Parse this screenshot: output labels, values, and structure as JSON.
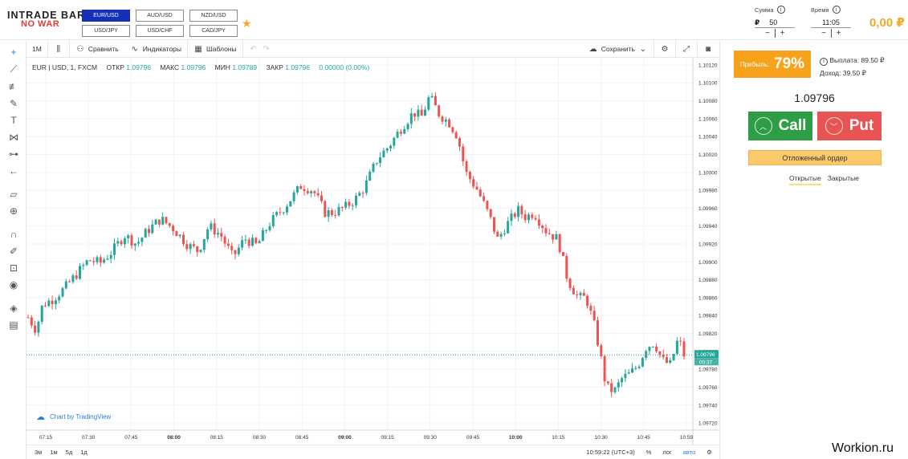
{
  "logo": {
    "line1": "INTRADE BAR",
    "line2": "NO WAR"
  },
  "pairs": [
    {
      "label": "EUR/USD",
      "active": true
    },
    {
      "label": "AUD/USD",
      "active": false
    },
    {
      "label": "NZD/USD",
      "active": false
    },
    {
      "label": "USD/JPY",
      "active": false
    },
    {
      "label": "USD/CHF",
      "active": false
    },
    {
      "label": "CAD/JPY",
      "active": false
    }
  ],
  "amount": {
    "label": "Сумма",
    "currency": "₽",
    "value": "50",
    "minus": "−",
    "plus": "+"
  },
  "time": {
    "label": "Время",
    "value": "11:05",
    "minus": "−",
    "plus": "+"
  },
  "balance": "0,00 ₽",
  "toolbar": {
    "interval": "1M",
    "compare": "Сравнить",
    "indicators": "Индикаторы",
    "templates": "Шаблоны",
    "save": "Сохранить"
  },
  "legend": {
    "symbol": "EUR | USD, 1, FXCM",
    "open_label": "ОТКР",
    "open": "1.09796",
    "high_label": "МАКС",
    "high": "1.09796",
    "low_label": "МИН",
    "low": "1.09789",
    "close_label": "ЗАКР",
    "close": "1.09796",
    "change": "0.00000 (0.00%)"
  },
  "tv_link": "Chart by TradingView",
  "bottombar": {
    "ranges": [
      "3м",
      "1м",
      "5д",
      "1д"
    ],
    "clock": "10:59:22 (UTC+3)",
    "percent": "%",
    "log": "лог",
    "auto": "авто"
  },
  "panel": {
    "profit_label": "Прибыль:",
    "profit_pct": "79%",
    "payout": "Выплата: 89.50 ₽",
    "income": "Доход: 39.50 ₽",
    "price": "1.09796",
    "call": "Call",
    "put": "Put",
    "pending": "Отложенный ордер",
    "tab_open": "Открытые",
    "tab_closed": "Закрытые"
  },
  "watermark": "Workion.ru",
  "colors": {
    "up": "#26a69a",
    "down": "#ef5350",
    "accent": "#f5a623",
    "call": "#2d9d46",
    "put": "#e85453"
  },
  "chart_data": {
    "type": "candlestick",
    "y_ticks": [
      "1.10120",
      "1.10100",
      "1.10080",
      "1.10060",
      "1.10040",
      "1.10020",
      "1.10000",
      "1.09980",
      "1.09960",
      "1.09940",
      "1.09920",
      "1.09900",
      "1.09880",
      "1.09860",
      "1.09840",
      "1.09820",
      "1.09800",
      "1.09780",
      "1.09760",
      "1.09740",
      "1.09720"
    ],
    "ylim": [
      1.09712,
      1.10128
    ],
    "x_ticks": [
      "07:15",
      "07:30",
      "07:45",
      "08:00",
      "08:15",
      "08:30",
      "08:45",
      "09:00",
      "09:15",
      "09:30",
      "09:45",
      "10:00",
      "10:15",
      "10:30",
      "10:45",
      "10:59"
    ],
    "x_bold": [
      "08:00",
      "09:00",
      "10:00"
    ],
    "current_price": "1.09796",
    "countdown": "00:37",
    "close_path": [
      [
        0,
        1.09838
      ],
      [
        10,
        1.09824
      ],
      [
        18,
        1.09852
      ],
      [
        30,
        1.09858
      ],
      [
        45,
        1.0987
      ],
      [
        60,
        1.09886
      ],
      [
        75,
        1.09902
      ],
      [
        90,
        1.09899
      ],
      [
        105,
        1.09912
      ],
      [
        120,
        1.0993
      ],
      [
        135,
        1.0992
      ],
      [
        150,
        1.09936
      ],
      [
        165,
        1.09948
      ],
      [
        180,
        1.09938
      ],
      [
        200,
        1.09918
      ],
      [
        212,
        1.09912
      ],
      [
        225,
        1.0994
      ],
      [
        240,
        1.0993
      ],
      [
        255,
        1.09905
      ],
      [
        270,
        1.09926
      ],
      [
        285,
        1.09918
      ],
      [
        300,
        1.09942
      ],
      [
        320,
        1.09962
      ],
      [
        340,
        1.09985
      ],
      [
        355,
        1.0998
      ],
      [
        370,
        1.09955
      ],
      [
        380,
        1.09955
      ],
      [
        395,
        1.09961
      ],
      [
        410,
        1.09972
      ],
      [
        420,
        1.09985
      ],
      [
        435,
        1.10015
      ],
      [
        450,
        1.1003
      ],
      [
        465,
        1.1005
      ],
      [
        480,
        1.10067
      ],
      [
        490,
        1.10062
      ],
      [
        500,
        1.10085
      ],
      [
        512,
        1.10065
      ],
      [
        525,
        1.10055
      ],
      [
        535,
        1.1004
      ],
      [
        545,
        1.1
      ],
      [
        560,
        1.0998
      ],
      [
        575,
        1.0995
      ],
      [
        585,
        1.09925
      ],
      [
        595,
        1.0994
      ],
      [
        610,
        1.09958
      ],
      [
        620,
        1.0995
      ],
      [
        630,
        1.09955
      ],
      [
        645,
        1.09935
      ],
      [
        660,
        1.09925
      ],
      [
        672,
        1.0988
      ],
      [
        685,
        1.0986
      ],
      [
        695,
        1.0986
      ],
      [
        705,
        1.0983
      ],
      [
        712,
        1.098
      ],
      [
        720,
        1.0976
      ],
      [
        730,
        1.09755
      ],
      [
        740,
        1.0977
      ],
      [
        750,
        1.09775
      ],
      [
        760,
        1.09785
      ],
      [
        770,
        1.09805
      ],
      [
        780,
        1.0981
      ],
      [
        790,
        1.0979
      ],
      [
        800,
        1.09785
      ],
      [
        810,
        1.09815
      ],
      [
        817,
        1.09796
      ]
    ]
  }
}
